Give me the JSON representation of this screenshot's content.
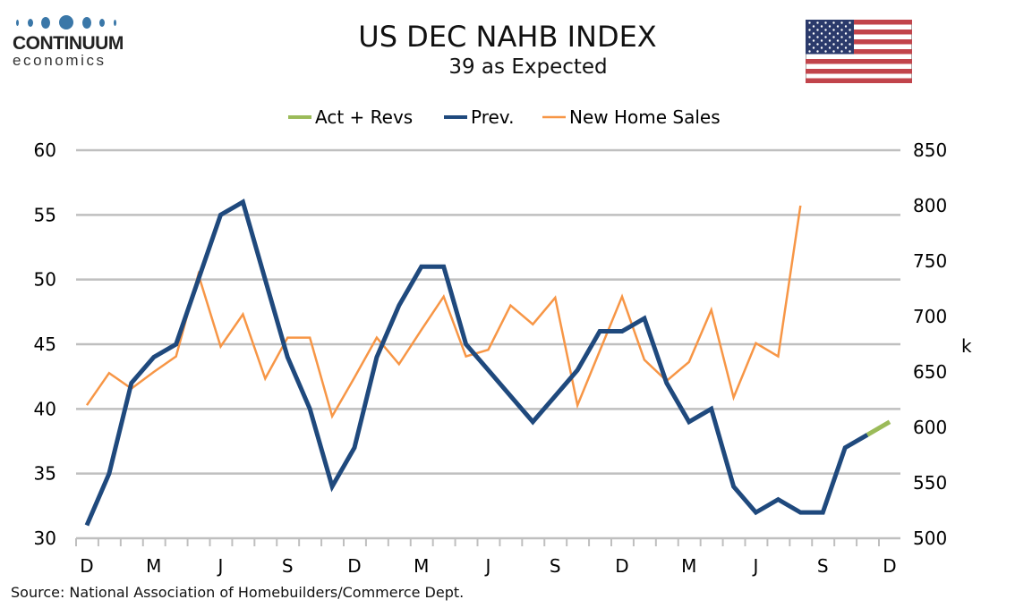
{
  "logo": {
    "name": "CONTINUUM",
    "sub": "economics"
  },
  "header": {
    "title": "US DEC NAHB INDEX",
    "subtitle": "39 as Expected",
    "flag_icon": "us-flag-icon"
  },
  "source": "Source: National Association of Homebuilders/Commerce Dept.",
  "colors": {
    "act": "#9bbb59",
    "prev": "#1f497d",
    "sales": "#f79646",
    "grid": "#bfbfbf"
  },
  "chart_data": {
    "type": "line",
    "title": "US DEC NAHB INDEX",
    "subtitle": "39 as Expected",
    "x_start": "Dec 2022",
    "x_end": "Dec 2025",
    "x_tick_labels": [
      "D",
      "M",
      "J",
      "S",
      "D",
      "M",
      "J",
      "S",
      "D",
      "M",
      "J",
      "S",
      "D"
    ],
    "legend": [
      "Act + Revs",
      "Prev.",
      "New Home Sales"
    ],
    "legend_position": "top-center",
    "y_left": {
      "ylim": [
        30,
        60
      ],
      "ticks": [
        "30",
        "35",
        "40",
        "45",
        "50",
        "55",
        "60"
      ]
    },
    "y_right": {
      "ylim": [
        500,
        850
      ],
      "ticks": [
        "500",
        "550",
        "600",
        "650",
        "700",
        "750",
        "800",
        "850"
      ],
      "label": "k"
    },
    "grid": true,
    "series": [
      {
        "name": "Prev.",
        "axis": "left",
        "start_index": 0,
        "values": [
          31,
          35,
          42,
          44,
          45,
          50,
          55,
          56,
          50,
          44,
          40,
          34,
          37,
          44,
          48,
          51,
          51,
          45,
          43,
          41,
          39,
          41,
          43,
          46,
          46,
          47,
          42,
          39,
          40,
          34,
          32,
          33,
          32,
          32,
          37,
          38
        ]
      },
      {
        "name": "Act + Revs",
        "axis": "left",
        "start_index": 35,
        "values": [
          38,
          39
        ]
      },
      {
        "name": "New Home Sales",
        "axis": "right",
        "start_index": 0,
        "values": [
          620,
          649,
          635,
          650,
          664,
          738,
          673,
          702,
          644,
          681,
          681,
          610,
          645,
          681,
          657,
          688,
          718,
          664,
          670,
          710,
          693,
          717,
          620,
          669,
          718,
          661,
          642,
          659,
          706,
          627,
          676,
          664,
          800
        ]
      }
    ]
  }
}
